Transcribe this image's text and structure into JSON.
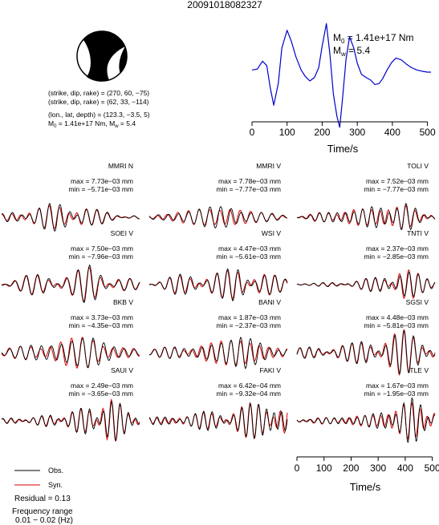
{
  "title": "20091018082327",
  "mechanism": {
    "line1": "(strike, dip, rake) = (270, 60, −75)",
    "line2": "(strike, dip, rake) = (62, 33, −114)",
    "line3": "(lon., lat, depth) = (123.3, −3.5, 5)",
    "m0_prefix": "M",
    "m0_sub": "0",
    "m0_val": " = 1.41e+17 Nm, M",
    "mw_sub": "w",
    "mw_val": " = 5.4"
  },
  "stf": {
    "m0_sym": "M",
    "m0_sub": "0",
    "m0_text": " = 1.41e+17 Nm",
    "mw_sym": "M",
    "mw_sub": "w",
    "mw_text": " = 5.4"
  },
  "legend": {
    "obs": "Obs.",
    "syn": "Syn.",
    "residual": "Residual = 0.13",
    "freq_label": "Frequency range",
    "freq_range": "0.01 − 0.02 (Hz)"
  },
  "chart_data": [
    {
      "type": "line",
      "id": "source-time-function",
      "xlabel": "Time/s",
      "xlim": [
        0,
        510
      ],
      "xticks": [
        0,
        100,
        200,
        300,
        400,
        500
      ],
      "color": "#0000cc",
      "series": [
        {
          "x": [
            0,
            15,
            30,
            42,
            52,
            62,
            75,
            85,
            100,
            112,
            125,
            140,
            152,
            165,
            178,
            190,
            200,
            212,
            222,
            232,
            242,
            250,
            258,
            268,
            278,
            290,
            300,
            312,
            325,
            338,
            350,
            362,
            372,
            385,
            398,
            410,
            425,
            440,
            455,
            470,
            485,
            500,
            510
          ],
          "y": [
            0.05,
            0.07,
            0.25,
            0.15,
            -0.35,
            -0.75,
            -0.25,
            0.55,
            0.95,
            0.7,
            0.35,
            0.05,
            -0.1,
            -0.2,
            -0.12,
            0.1,
            0.6,
            1.1,
            0.4,
            -0.5,
            -1.0,
            -1.25,
            -0.6,
            0.3,
            0.8,
            0.55,
            0.2,
            -0.05,
            -0.12,
            -0.18,
            -0.28,
            -0.26,
            -0.15,
            0.05,
            0.22,
            0.32,
            0.28,
            0.18,
            0.1,
            0.05,
            0.02,
            0.0,
            0.0
          ]
        }
      ]
    },
    {
      "type": "line",
      "id": "waveforms",
      "xlabel": "Time/s",
      "xlim": [
        0,
        510
      ],
      "xticks": [
        0,
        100,
        200,
        300,
        400,
        500
      ],
      "series_names": [
        "Obs.",
        "Syn."
      ],
      "series_colors": {
        "obs": "#000000",
        "syn": "#dd0000"
      },
      "stations": [
        {
          "name": "MMRI N",
          "max": "max = 7.73e−03 mm",
          "min": "min = −5.71e−03 mm",
          "seed": 1,
          "freqs": [
            11,
            18,
            26
          ],
          "env": [
            [
              0,
              0.2
            ],
            [
              100,
              0.6
            ],
            [
              280,
              0.95
            ],
            [
              330,
              0.5
            ],
            [
              420,
              0.2
            ],
            [
              510,
              0.1
            ]
          ]
        },
        {
          "name": "MMRI V",
          "max": "max = 7.78e−03 mm",
          "min": "min = −7.77e−03 mm",
          "seed": 2,
          "freqs": [
            12,
            19,
            27
          ],
          "env": [
            [
              0,
              0.15
            ],
            [
              120,
              0.5
            ],
            [
              300,
              1.0
            ],
            [
              360,
              0.6
            ],
            [
              450,
              0.3
            ],
            [
              510,
              0.1
            ]
          ]
        },
        {
          "name": "TOLI V",
          "max": "max = 7.52e−03 mm",
          "min": "min = −7.77e−03 mm",
          "seed": 3,
          "freqs": [
            10,
            17,
            25
          ],
          "env": [
            [
              0,
              0.1
            ],
            [
              150,
              0.5
            ],
            [
              320,
              0.9
            ],
            [
              390,
              1.0
            ],
            [
              450,
              0.5
            ],
            [
              510,
              0.2
            ]
          ]
        },
        {
          "name": "SOEI V",
          "max": "max = 7.50e−03 mm",
          "min": "min = −7.96e−03 mm",
          "seed": 4,
          "freqs": [
            12,
            20,
            28
          ],
          "env": [
            [
              0,
              0.15
            ],
            [
              100,
              0.5
            ],
            [
              250,
              0.6
            ],
            [
              330,
              1.0
            ],
            [
              420,
              0.5
            ],
            [
              510,
              0.2
            ]
          ]
        },
        {
          "name": "WSI V",
          "max": "max = 4.47e−03 mm",
          "min": "min = −5.61e−03 mm",
          "seed": 5,
          "freqs": [
            11,
            18,
            26
          ],
          "env": [
            [
              0,
              0.1
            ],
            [
              100,
              0.5
            ],
            [
              280,
              0.7
            ],
            [
              340,
              1.0
            ],
            [
              430,
              0.6
            ],
            [
              510,
              0.3
            ]
          ]
        },
        {
          "name": "TNTI V",
          "max": "max = 2.37e−03 mm",
          "min": "min = −2.85e−03 mm",
          "seed": 6,
          "freqs": [
            10,
            16,
            24
          ],
          "env": [
            [
              0,
              0.05
            ],
            [
              180,
              0.15
            ],
            [
              300,
              0.4
            ],
            [
              380,
              1.0
            ],
            [
              440,
              0.7
            ],
            [
              510,
              0.3
            ]
          ]
        },
        {
          "name": "BKB V",
          "max": "max = 3.73e−03 mm",
          "min": "min = −4.35e−03 mm",
          "seed": 7,
          "freqs": [
            12,
            19,
            27
          ],
          "env": [
            [
              0,
              0.15
            ],
            [
              100,
              0.5
            ],
            [
              200,
              0.7
            ],
            [
              330,
              1.0
            ],
            [
              420,
              0.5
            ],
            [
              510,
              0.2
            ]
          ]
        },
        {
          "name": "BANI V",
          "max": "max = 1.87e−03 mm",
          "min": "min = −2.37e−03 mm",
          "seed": 8,
          "freqs": [
            11,
            17,
            25
          ],
          "env": [
            [
              0,
              0.1
            ],
            [
              100,
              0.4
            ],
            [
              250,
              0.6
            ],
            [
              350,
              1.0
            ],
            [
              430,
              0.6
            ],
            [
              510,
              0.3
            ]
          ]
        },
        {
          "name": "SGSI V",
          "max": "max = 4.48e−03 mm",
          "min": "min = −5.81e−03 mm",
          "seed": 9,
          "freqs": [
            10,
            16,
            23
          ],
          "env": [
            [
              0,
              0.2
            ],
            [
              200,
              0.4
            ],
            [
              300,
              0.7
            ],
            [
              390,
              1.0
            ],
            [
              450,
              0.8
            ],
            [
              510,
              0.5
            ]
          ]
        },
        {
          "name": "SAUI V",
          "max": "max = 2.49e−03 mm",
          "min": "min = −3.65e−03 mm",
          "seed": 10,
          "freqs": [
            9,
            15,
            22
          ],
          "env": [
            [
              0,
              0.1
            ],
            [
              150,
              0.2
            ],
            [
              300,
              0.5
            ],
            [
              380,
              1.0
            ],
            [
              450,
              0.7
            ],
            [
              510,
              0.4
            ]
          ]
        },
        {
          "name": "FAKI V",
          "max": "max = 6.42e−04 mm",
          "min": "min = −9.32e−04 mm",
          "seed": 11,
          "freqs": [
            9,
            14,
            21
          ],
          "env": [
            [
              0,
              0.2
            ],
            [
              150,
              0.3
            ],
            [
              300,
              0.5
            ],
            [
              400,
              0.8
            ],
            [
              470,
              1.0
            ],
            [
              510,
              0.8
            ]
          ]
        },
        {
          "name": "TLE V",
          "max": "max = 1.67e−03 mm",
          "min": "min = −1.95e−03 mm",
          "seed": 12,
          "freqs": [
            9,
            15,
            22
          ],
          "env": [
            [
              0,
              0.1
            ],
            [
              150,
              0.2
            ],
            [
              300,
              0.4
            ],
            [
              400,
              1.0
            ],
            [
              470,
              0.9
            ],
            [
              510,
              0.6
            ]
          ]
        }
      ]
    }
  ]
}
